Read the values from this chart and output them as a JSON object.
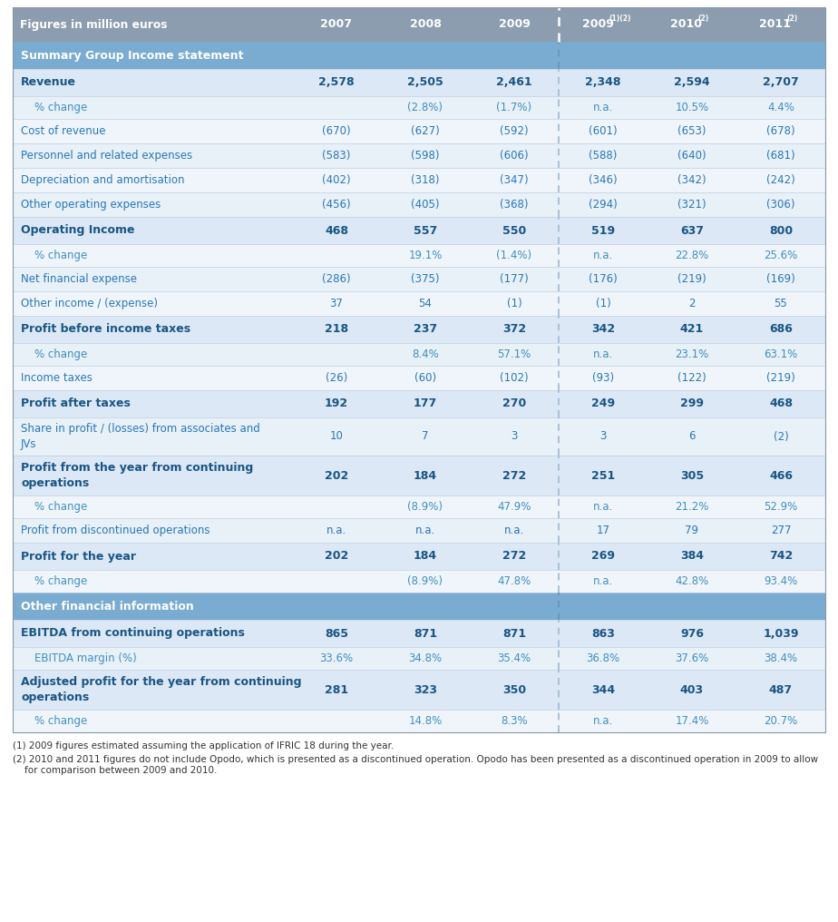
{
  "header_bg": "#8c9db0",
  "header_text_color": "#ffffff",
  "section_bg": "#7aabd0",
  "section_text_color": "#ffffff",
  "bold_row_bg": "#dce8f5",
  "alt_row_bg1": "#e8f0f8",
  "alt_row_bg2": "#f0f5fb",
  "bold_text_color": "#1a5585",
  "normal_text_color": "#2878b8",
  "indent_text_color": "#4090c0",
  "footnote_color": "#333333",
  "sep_color": "#c0d0e0",
  "col_header_label": "Figures in million euros",
  "col_bases": [
    "2007",
    "2008",
    "2009",
    "2009",
    "2010",
    "2011"
  ],
  "col_superscripts": [
    "",
    "",
    "",
    "(1)(2)",
    "(2)",
    "(2)"
  ],
  "rows": [
    {
      "label": "Summary Group Income statement",
      "type": "section",
      "v": [
        "",
        "",
        "",
        "",
        "",
        ""
      ]
    },
    {
      "label": "Revenue",
      "type": "bold",
      "v": [
        "2,578",
        "2,505",
        "2,461",
        "2,348",
        "2,594",
        "2,707"
      ]
    },
    {
      "label": "% change",
      "type": "indent",
      "v": [
        "",
        "(2.8%)",
        "(1.7%)",
        "n.a.",
        "10.5%",
        "4.4%"
      ]
    },
    {
      "label": "Cost of revenue",
      "type": "normal",
      "v": [
        "(670)",
        "(627)",
        "(592)",
        "(601)",
        "(653)",
        "(678)"
      ]
    },
    {
      "label": "Personnel and related expenses",
      "type": "normal",
      "v": [
        "(583)",
        "(598)",
        "(606)",
        "(588)",
        "(640)",
        "(681)"
      ]
    },
    {
      "label": "Depreciation and amortisation",
      "type": "normal",
      "v": [
        "(402)",
        "(318)",
        "(347)",
        "(346)",
        "(342)",
        "(242)"
      ]
    },
    {
      "label": "Other operating expenses",
      "type": "normal",
      "v": [
        "(456)",
        "(405)",
        "(368)",
        "(294)",
        "(321)",
        "(306)"
      ]
    },
    {
      "label": "Operating Income",
      "type": "bold",
      "v": [
        "468",
        "557",
        "550",
        "519",
        "637",
        "800"
      ]
    },
    {
      "label": "% change",
      "type": "indent",
      "v": [
        "",
        "19.1%",
        "(1.4%)",
        "n.a.",
        "22.8%",
        "25.6%"
      ]
    },
    {
      "label": "Net financial expense",
      "type": "normal",
      "v": [
        "(286)",
        "(375)",
        "(177)",
        "(176)",
        "(219)",
        "(169)"
      ]
    },
    {
      "label": "Other income / (expense)",
      "type": "normal",
      "v": [
        "37",
        "54",
        "(1)",
        "(1)",
        "2",
        "55"
      ]
    },
    {
      "label": "Profit before income taxes",
      "type": "bold",
      "v": [
        "218",
        "237",
        "372",
        "342",
        "421",
        "686"
      ]
    },
    {
      "label": "% change",
      "type": "indent",
      "v": [
        "",
        "8.4%",
        "57.1%",
        "n.a.",
        "23.1%",
        "63.1%"
      ]
    },
    {
      "label": "Income taxes",
      "type": "normal",
      "v": [
        "(26)",
        "(60)",
        "(102)",
        "(93)",
        "(122)",
        "(219)"
      ]
    },
    {
      "label": "Profit after taxes",
      "type": "bold",
      "v": [
        "192",
        "177",
        "270",
        "249",
        "299",
        "468"
      ]
    },
    {
      "label": "Share in profit / (losses) from associates and\nJVs",
      "type": "normal_wrap",
      "v": [
        "10",
        "7",
        "3",
        "3",
        "6",
        "(2)"
      ]
    },
    {
      "label": "Profit from the year from continuing\noperations",
      "type": "bold_wrap",
      "v": [
        "202",
        "184",
        "272",
        "251",
        "305",
        "466"
      ]
    },
    {
      "label": "% change",
      "type": "indent",
      "v": [
        "",
        "(8.9%)",
        "47.9%",
        "n.a.",
        "21.2%",
        "52.9%"
      ]
    },
    {
      "label": "Profit from discontinued operations",
      "type": "normal",
      "v": [
        "n.a.",
        "n.a.",
        "n.a.",
        "17",
        "79",
        "277"
      ]
    },
    {
      "label": "Profit for the year",
      "type": "bold",
      "v": [
        "202",
        "184",
        "272",
        "269",
        "384",
        "742"
      ]
    },
    {
      "label": "% change",
      "type": "indent",
      "v": [
        "",
        "(8.9%)",
        "47.8%",
        "n.a.",
        "42.8%",
        "93.4%"
      ]
    },
    {
      "label": "Other financial information",
      "type": "section",
      "v": [
        "",
        "",
        "",
        "",
        "",
        ""
      ]
    },
    {
      "label": "EBITDA from continuing operations",
      "type": "bold",
      "v": [
        "865",
        "871",
        "871",
        "863",
        "976",
        "1,039"
      ]
    },
    {
      "label": "EBITDA margin (%)",
      "type": "indent",
      "v": [
        "33.6%",
        "34.8%",
        "35.4%",
        "36.8%",
        "37.6%",
        "38.4%"
      ]
    },
    {
      "label": "Adjusted profit for the year from continuing\noperations",
      "type": "bold_wrap",
      "v": [
        "281",
        "323",
        "350",
        "344",
        "403",
        "487"
      ]
    },
    {
      "label": "% change",
      "type": "indent",
      "v": [
        "",
        "14.8%",
        "8.3%",
        "n.a.",
        "17.4%",
        "20.7%"
      ]
    }
  ],
  "footnote1": "(1) 2009 figures estimated assuming the application of IFRIC 18 during the year.",
  "footnote2": "(2) 2010 and 2011 figures do not include Opodo, which is presented as a discontinued operation. Opodo has been presented as a discontinued operation in 2009 to allow",
  "footnote2b": "    for comparison between 2009 and 2010."
}
